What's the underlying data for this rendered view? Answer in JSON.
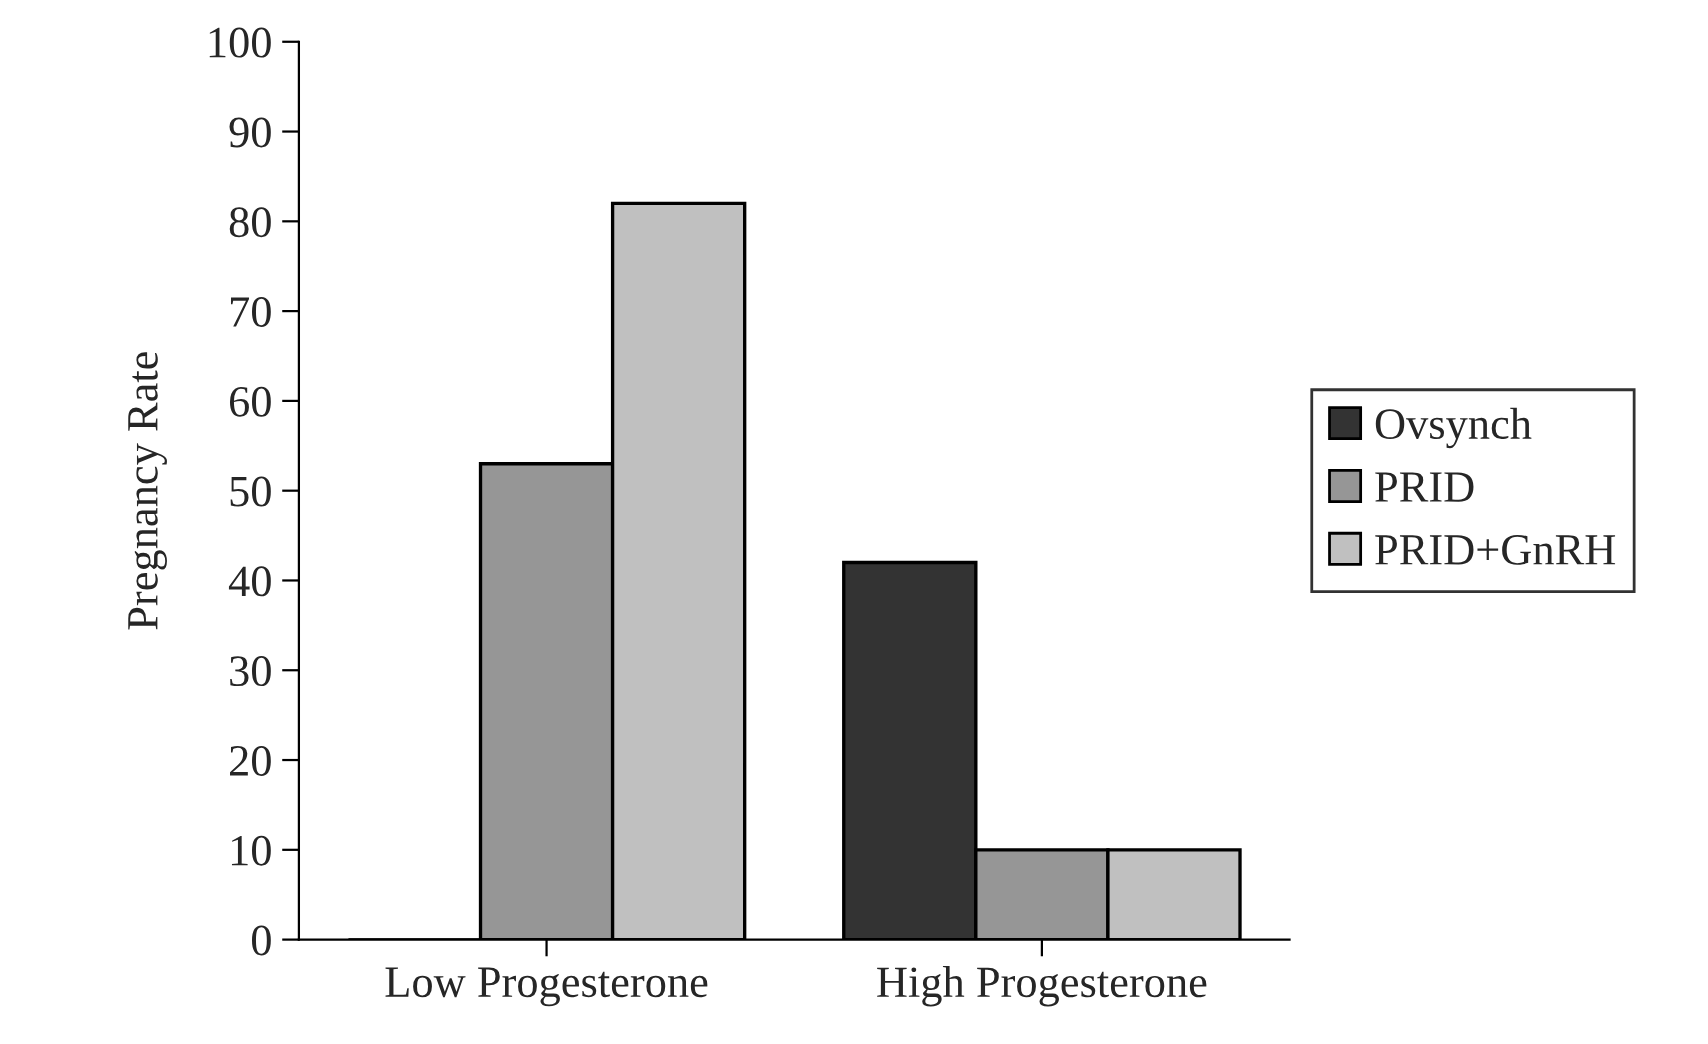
{
  "chart_data": {
    "type": "bar",
    "ylabel": "Pregnancy Rate",
    "categories": [
      "Low Progesterone",
      "High Progesterone"
    ],
    "series": [
      {
        "name": "Ovsynch",
        "color": "#333333",
        "values": [
          0,
          42
        ]
      },
      {
        "name": "PRID",
        "color": "#969696",
        "values": [
          53,
          10
        ]
      },
      {
        "name": "PRID+GnRH",
        "color": "#c0c0c0",
        "values": [
          82,
          10
        ]
      }
    ],
    "ylim": [
      0,
      100
    ],
    "yticks": [
      0,
      10,
      20,
      30,
      40,
      50,
      60,
      70,
      80,
      90,
      100
    ],
    "grid": false,
    "legend": "right"
  }
}
